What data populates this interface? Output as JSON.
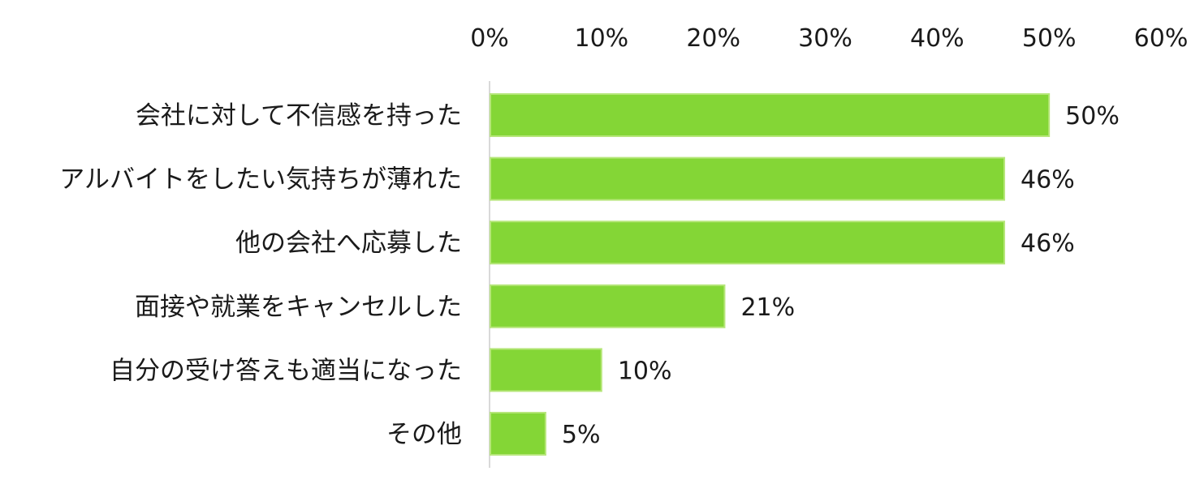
{
  "chart_data": {
    "type": "bar",
    "orientation": "horizontal",
    "categories": [
      "会社に対して不信感を持った",
      "アルバイトをしたい気持ちが薄れた",
      "他の会社へ応募した",
      "面接や就業をキャンセルした",
      "自分の受け答えも適当になった",
      "その他"
    ],
    "values": [
      50,
      46,
      46,
      21,
      10,
      5
    ],
    "value_labels": [
      "50%",
      "46%",
      "46%",
      "21%",
      "10%",
      "5%"
    ],
    "x_ticks": [
      "0%",
      "10%",
      "20%",
      "30%",
      "40%",
      "50%",
      "60%"
    ],
    "xlim": [
      0,
      60
    ],
    "x_axis_position": "top",
    "grid": false,
    "legend": "none",
    "bar_color": "#84d636",
    "bar_border_color": "#b6e67a",
    "axis_color": "#d9d9d9"
  }
}
